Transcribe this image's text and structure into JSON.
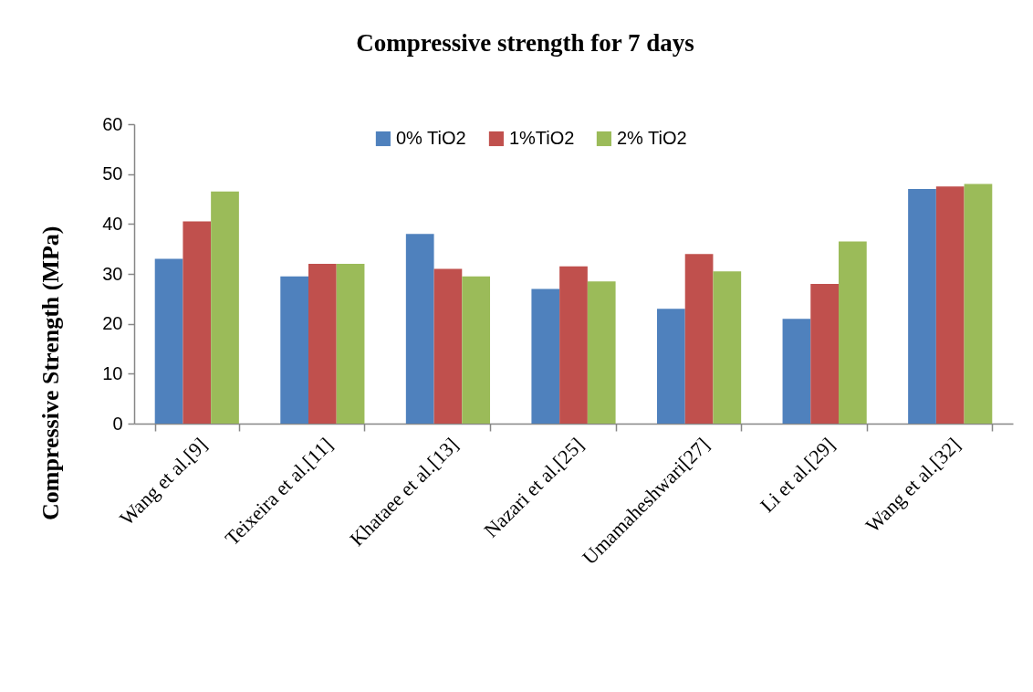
{
  "chart_data": {
    "type": "bar",
    "title": "Compressive  strength for 7 days",
    "ylabel": "Compressive Strength (MPa)",
    "categories": [
      "Wang et al.[9]",
      "Teixeira et al.[11]",
      "Khataee et al.[13]",
      "Nazari et al.[25]",
      "Umamaheshwari[27]",
      "Li et al.[29]",
      "Wang et al.[32]"
    ],
    "series": [
      {
        "name": "0% TiO2",
        "color": "#4f81bd",
        "values": [
          33,
          29.5,
          38,
          27,
          23,
          21,
          47
        ]
      },
      {
        "name": "1%TiO2",
        "color": "#c0504d",
        "values": [
          40.5,
          32,
          31,
          31.5,
          34,
          28,
          47.5
        ]
      },
      {
        "name": "2% TiO2",
        "color": "#9bbb59",
        "values": [
          46.5,
          32,
          29.5,
          28.5,
          30.5,
          36.5,
          48
        ]
      }
    ],
    "ylim": [
      0,
      60
    ],
    "yticks": [
      0,
      10,
      20,
      30,
      40,
      50,
      60
    ],
    "legend": "top"
  }
}
